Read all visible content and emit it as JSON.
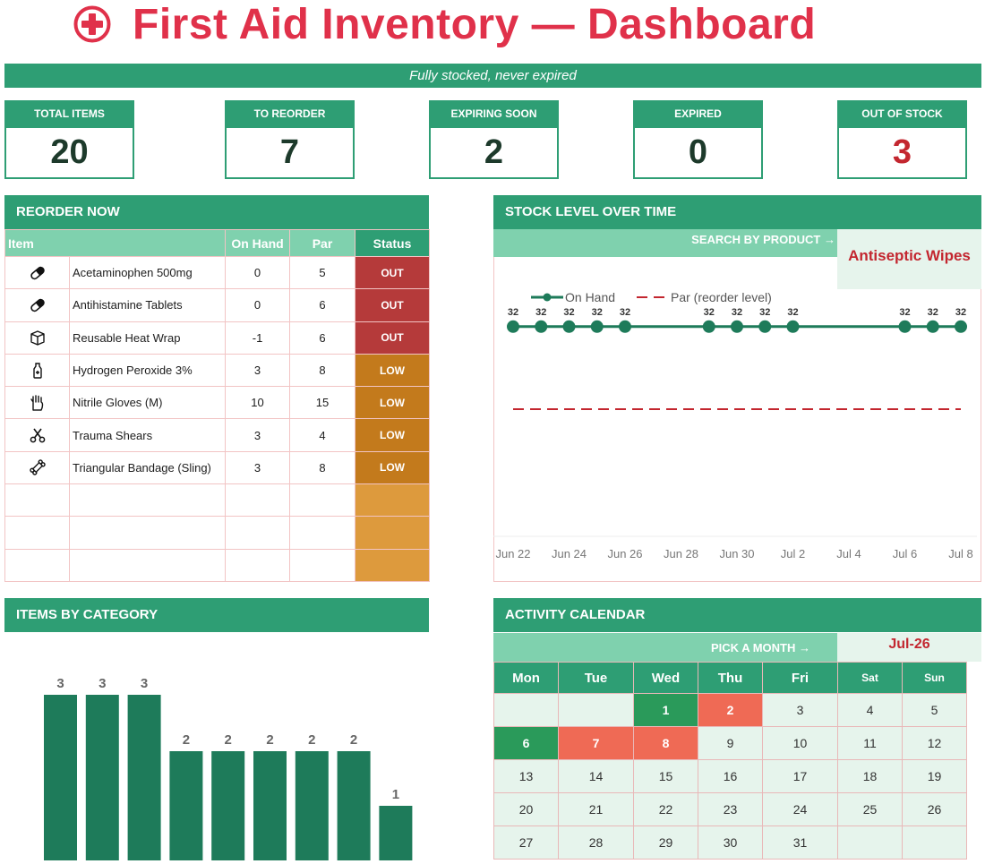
{
  "header": {
    "title": "First Aid Inventory — Dashboard",
    "subtitle": "Fully stocked, never expired"
  },
  "kpis": [
    {
      "label": "TOTAL ITEMS",
      "value": "20"
    },
    {
      "label": "TO REORDER",
      "value": "7"
    },
    {
      "label": "EXPIRING SOON",
      "value": "2"
    },
    {
      "label": "EXPIRED",
      "value": "0"
    },
    {
      "label": "OUT OF STOCK",
      "value": "3"
    }
  ],
  "reorder": {
    "title": "REORDER NOW",
    "columns": [
      "Item",
      "On Hand",
      "Par",
      "Status"
    ],
    "rows": [
      {
        "icon": "pill-icon",
        "name": "Acetaminophen 500mg",
        "on_hand": "0",
        "par": "5",
        "status": "OUT"
      },
      {
        "icon": "pill-icon",
        "name": "Antihistamine Tablets",
        "on_hand": "0",
        "par": "6",
        "status": "OUT"
      },
      {
        "icon": "box-icon",
        "name": "Reusable Heat Wrap",
        "on_hand": "-1",
        "par": "6",
        "status": "OUT"
      },
      {
        "icon": "bottle-icon",
        "name": "Hydrogen Peroxide 3%",
        "on_hand": "3",
        "par": "8",
        "status": "LOW"
      },
      {
        "icon": "glove-icon",
        "name": "Nitrile Gloves (M)",
        "on_hand": "10",
        "par": "15",
        "status": "LOW"
      },
      {
        "icon": "scissors-icon",
        "name": "Trauma Shears",
        "on_hand": "3",
        "par": "4",
        "status": "LOW"
      },
      {
        "icon": "bandage-icon",
        "name": "Triangular Bandage (Sling)",
        "on_hand": "3",
        "par": "8",
        "status": "LOW"
      }
    ]
  },
  "stock_chart": {
    "title": "STOCK LEVEL OVER TIME",
    "search_label": "SEARCH BY PRODUCT →",
    "search_value": "Antiseptic Wipes",
    "legend_on_hand": "On Hand",
    "legend_par": "Par (reorder level)"
  },
  "category_chart": {
    "title": "ITEMS BY CATEGORY"
  },
  "calendar": {
    "title": "ACTIVITY CALENDAR",
    "pick_label": "PICK A MONTH →",
    "month": "Jul-26",
    "days": [
      "Mon",
      "Tue",
      "Wed",
      "Thu",
      "Fri",
      "Sat",
      "Sun"
    ],
    "weeks": [
      [
        "",
        "",
        "1",
        "2",
        "3",
        "4",
        "5"
      ],
      [
        "6",
        "7",
        "8",
        "9",
        "10",
        "11",
        "12"
      ],
      [
        "13",
        "14",
        "15",
        "16",
        "17",
        "18",
        "19"
      ],
      [
        "20",
        "21",
        "22",
        "23",
        "24",
        "25",
        "26"
      ],
      [
        "27",
        "28",
        "29",
        "30",
        "31",
        "",
        ""
      ]
    ],
    "green_days": [
      "1",
      "6"
    ],
    "red_days": [
      "2",
      "7",
      "8"
    ]
  },
  "colors": {
    "accent": "#2e9e74",
    "accent_light": "#7fd1ae",
    "title_red": "#e0314a",
    "bar": "#1e7b5a",
    "par_line": "#c3262f",
    "out": "#b53a3a",
    "low": "#c37a1c"
  },
  "chart_data": [
    {
      "type": "line",
      "x": [
        "Jun 22",
        "Jun 23",
        "Jun 24",
        "Jun 25",
        "Jun 26",
        "Jun 29",
        "Jun 30",
        "Jul 1",
        "Jul 2",
        "Jul 6",
        "Jul 7",
        "Jul 8"
      ],
      "series": [
        {
          "name": "On Hand",
          "values": [
            32,
            32,
            32,
            32,
            32,
            32,
            32,
            32,
            32,
            32,
            32,
            32
          ]
        }
      ],
      "par_line": {
        "name": "Par (reorder level)"
      },
      "xticks": [
        "Jun 22",
        "Jun 24",
        "Jun 26",
        "Jun 28",
        "Jun 30",
        "Jul 2",
        "Jul 4",
        "Jul 6",
        "Jul 8"
      ],
      "legend": "top-left",
      "grid": false
    },
    {
      "type": "bar",
      "values": [
        3,
        3,
        3,
        2,
        2,
        2,
        2,
        2,
        1
      ],
      "ylim": [
        0,
        3.6
      ]
    }
  ]
}
